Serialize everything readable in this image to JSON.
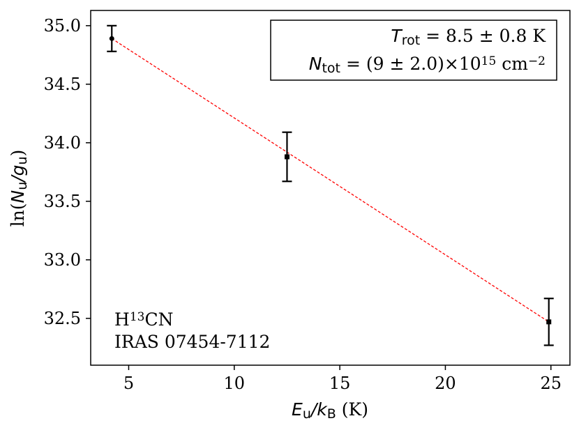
{
  "chart_data": {
    "type": "scatter",
    "x": [
      4.2,
      12.5,
      24.9
    ],
    "series": [
      {
        "values": [
          34.89,
          33.88,
          32.47
        ],
        "error": [
          0.11,
          0.21,
          0.2
        ],
        "marker_color": "#000000"
      }
    ],
    "fit_line": {
      "x": [
        4.2,
        24.9
      ],
      "y": [
        34.89,
        32.47
      ],
      "color": "#ff0000",
      "style": "dashed"
    },
    "xlabel": {
      "left": "E",
      "left_sub": "u",
      "mid": "/k",
      "right_sub": "B",
      "unit": " (K)"
    },
    "ylabel": {
      "prefix": "ln(",
      "n": "N",
      "n_sub": "u",
      "slash": "/g",
      "g_sub": "u",
      "suffix": ")"
    },
    "xlim": [
      3.2,
      25.9
    ],
    "ylim": [
      32.1,
      35.13
    ],
    "xticks": [
      5,
      10,
      15,
      20,
      25
    ],
    "yticks": [
      32.5,
      33.0,
      33.5,
      34.0,
      34.5,
      35.0
    ],
    "legend": {
      "placement": "top-right",
      "line1_var": "T",
      "line1_sub": "rot",
      "line1_rest": " = 8.5 ± 0.8 K",
      "line2_var": "N",
      "line2_sub": "tot",
      "line2_mid": " = (9 ± 2.0)×10",
      "line2_exp": "15",
      "line2_unit": " cm",
      "line2_unit_exp": "−2"
    },
    "annotation": {
      "placement": "bottom-left",
      "species_prefix": "H",
      "species_sup": "13",
      "species_suffix": "CN",
      "source": "IRAS 07454-7112"
    },
    "grid": false
  }
}
